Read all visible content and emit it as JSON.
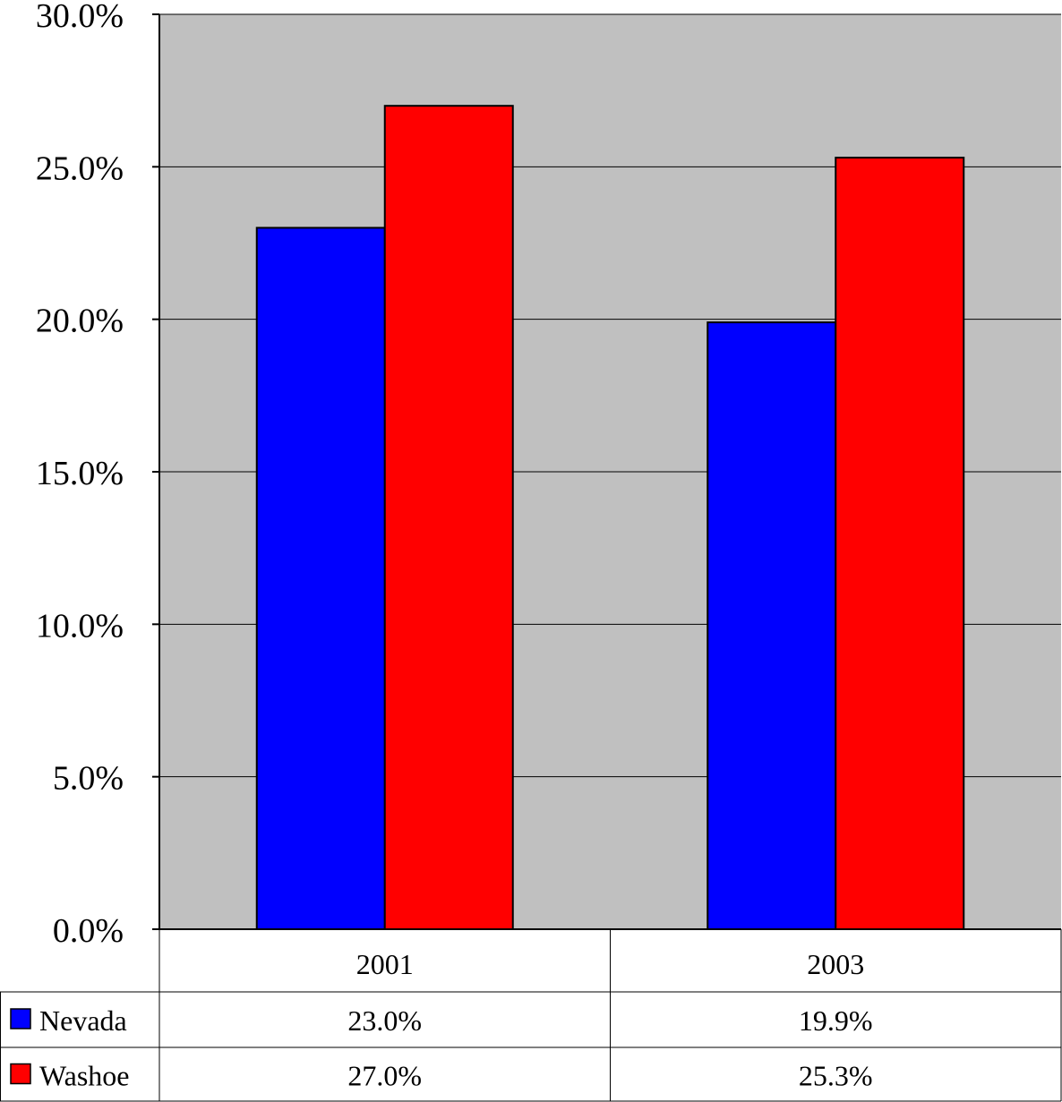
{
  "chart_data": {
    "type": "bar",
    "title": "",
    "xlabel": "",
    "ylabel": "",
    "categories": [
      "2001",
      "2003"
    ],
    "series": [
      {
        "name": "Nevada",
        "values": [
          23.0,
          19.9
        ],
        "labels": [
          "23.0%",
          "19.9%"
        ],
        "color": "#0000ff"
      },
      {
        "name": "Washoe",
        "values": [
          27.0,
          25.3
        ],
        "labels": [
          "27.0%",
          "25.3%"
        ],
        "color": "#ff0000"
      }
    ],
    "ylim": [
      0,
      30
    ],
    "yticks": [
      {
        "value": 0,
        "label": "0.0%"
      },
      {
        "value": 5,
        "label": "5.0%"
      },
      {
        "value": 10,
        "label": "10.0%"
      },
      {
        "value": 15,
        "label": "15.0%"
      },
      {
        "value": 20,
        "label": "20.0%"
      },
      {
        "value": 25,
        "label": "25.0%"
      },
      {
        "value": 30,
        "label": "30.0%"
      }
    ],
    "grid": true,
    "plot_background": "#c0c0c0",
    "data_table": true,
    "legend": "data-table-left"
  }
}
